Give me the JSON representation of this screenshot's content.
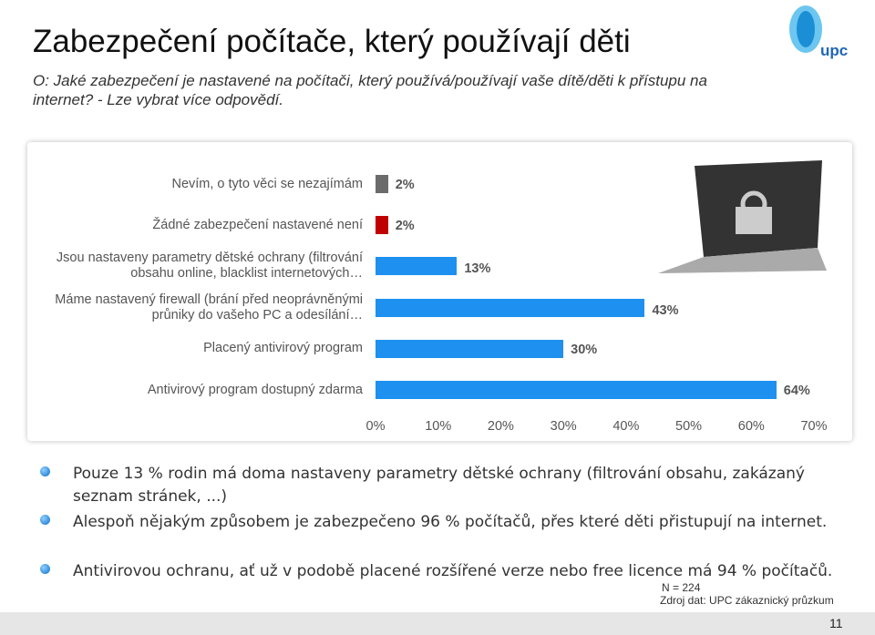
{
  "title": "Zabezpečení počítače, který používají děti",
  "subtitle": "O: Jaké zabezpečení je nastavené na počítači, který používá/používají vaše dítě/děti k přístupu na internet? - Lze vybrat více odpovědí.",
  "logo": "upc",
  "chart_data": {
    "type": "bar",
    "orientation": "horizontal",
    "categories": [
      "Nevím, o tyto věci se nezajímám",
      "Žádné zabezpečení nastavené není",
      "Jsou nastaveny parametry dětské ochrany (filtrování obsahu online, blacklist internetových…",
      "Máme nastavený firewall (brání před neoprávněnými průniky do vašeho PC a odesílání…",
      "Placený antivirový program",
      "Antivirový program dostupný zdarma"
    ],
    "values": [
      2,
      2,
      13,
      43,
      30,
      64
    ],
    "value_labels": [
      "2%",
      "2%",
      "13%",
      "43%",
      "30%",
      "64%"
    ],
    "colors": [
      "#6b6b6b",
      "#c00000",
      "#1e90f0",
      "#1e90f0",
      "#1e90f0",
      "#1e90f0"
    ],
    "xlim": [
      0,
      70
    ],
    "xticks": [
      {
        "value": 0,
        "label": "0%"
      },
      {
        "value": 10,
        "label": "10%"
      },
      {
        "value": 20,
        "label": "20%"
      },
      {
        "value": 30,
        "label": "30%"
      },
      {
        "value": 40,
        "label": "40%"
      },
      {
        "value": 50,
        "label": "50%"
      },
      {
        "value": 60,
        "label": "60%"
      },
      {
        "value": 70,
        "label": "70%"
      }
    ],
    "grid": false
  },
  "bullets": [
    "Pouze 13 % rodin má doma nastaveny parametry dětské ochrany (filtrování obsahu, zakázaný seznam stránek, ...)",
    "Alespoň nějakým způsobem je zabezpečeno 96 % počítačů, přes které děti přistupují na internet.",
    "Antivirovou ochranu, ať už v podobě placené rozšířené verze nebo free licence má 94 % počítačů."
  ],
  "note": "N = 224",
  "source": "Zdroj dat: UPC zákaznický průzkum",
  "page_number": "11"
}
